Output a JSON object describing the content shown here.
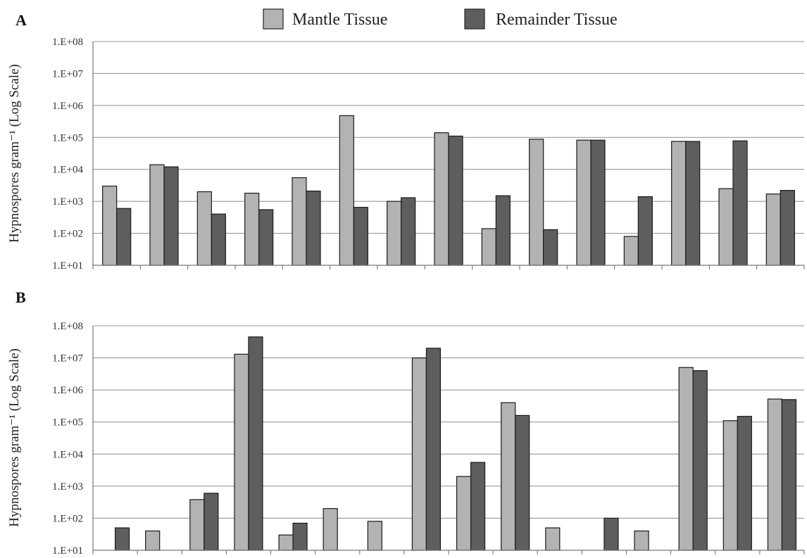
{
  "legend": [
    {
      "label": "Mantle Tissue",
      "color": "#b3b3b3"
    },
    {
      "label": "Remainder Tissue",
      "color": "#5e5e5e"
    }
  ],
  "chart_data": [
    {
      "type": "bar",
      "panel_label": "A",
      "ylabel": "Hypnospores gram⁻¹ (Log Scale)",
      "yscale": "log",
      "ylim": [
        10,
        100000000
      ],
      "yticks": [
        "1.E+01",
        "1.E+02",
        "1.E+03",
        "1.E+04",
        "1.E+05",
        "1.E+06",
        "1.E+07",
        "1.E+08"
      ],
      "grid": true,
      "categories": [
        "",
        "",
        "",
        "",
        "",
        "",
        "",
        "",
        "",
        "",
        "",
        "",
        "",
        "",
        ""
      ],
      "series": [
        {
          "name": "Mantle Tissue",
          "color": "#b3b3b3",
          "values": [
            3000,
            14000,
            2000,
            1800,
            5500,
            480000,
            1000,
            140000,
            140,
            88000,
            82000,
            80,
            75000,
            2500,
            1700
          ]
        },
        {
          "name": "Remainder Tissue",
          "color": "#5e5e5e",
          "values": [
            600,
            12000,
            400,
            550,
            2100,
            650,
            1300,
            110000,
            1500,
            130,
            82000,
            1400,
            75000,
            78000,
            2200
          ]
        }
      ]
    },
    {
      "type": "bar",
      "panel_label": "B",
      "ylabel": "Hypnospores gram⁻¹ (Log Scale)",
      "yscale": "log",
      "ylim": [
        10,
        100000000
      ],
      "yticks": [
        "1.E+01",
        "1.E+02",
        "1.E+03",
        "1.E+04",
        "1.E+05",
        "1.E+06",
        "1.E+07",
        "1.E+08"
      ],
      "grid": true,
      "categories": [
        "",
        "",
        "",
        "",
        "",
        "",
        "",
        "",
        "",
        "",
        "",
        "",
        "",
        "",
        "",
        ""
      ],
      "series": [
        {
          "name": "Mantle Tissue",
          "color": "#b3b3b3",
          "values": [
            null,
            40,
            380,
            13000000,
            30,
            200,
            80,
            10000000,
            2000,
            400000,
            50,
            null,
            40,
            5000000,
            110000,
            520000
          ]
        },
        {
          "name": "Remainder Tissue",
          "color": "#5e5e5e",
          "values": [
            50,
            null,
            600,
            45000000,
            70,
            null,
            null,
            20000000,
            5500,
            160000,
            null,
            100,
            null,
            4000000,
            150000,
            500000
          ]
        }
      ]
    }
  ]
}
